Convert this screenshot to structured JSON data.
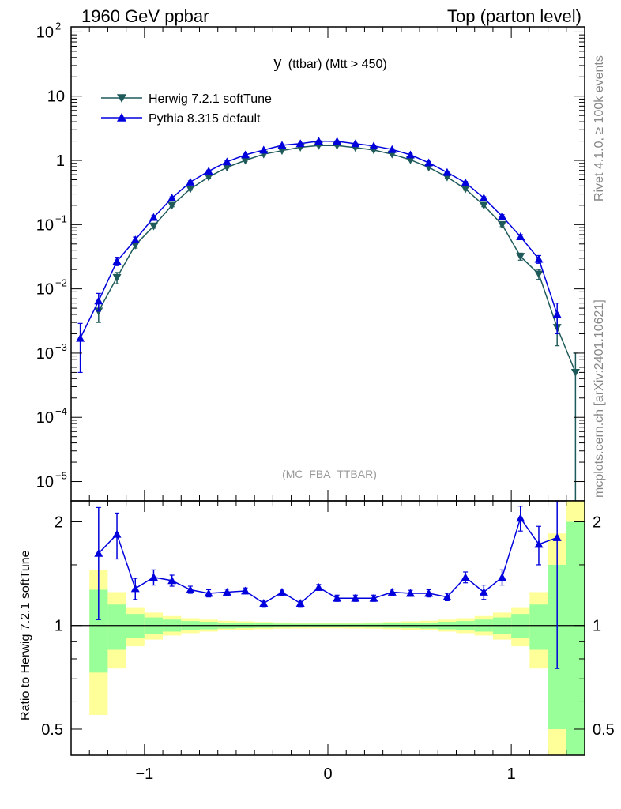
{
  "header": {
    "left": "1960 GeV ppbar",
    "right": "Top (parton level)"
  },
  "side_labels": {
    "rivet": "Rivet 4.1.0, ≥ 100k events",
    "mcplots": "mcplots.cern.ch [arXiv:2401.10621]"
  },
  "watermark": "(MC_FBA_TTBAR)",
  "colors": {
    "herwig": "#1e5a5a",
    "pythia": "#0000dd",
    "band_inner": "#99ff99",
    "band_outer": "#ffff99"
  },
  "chart_data": [
    {
      "type": "line",
      "title_main": "y",
      "title_sub": "(ttbar) (Mtt > 450)",
      "yscale": "log",
      "xlim": [
        -1.4,
        1.4
      ],
      "ylim": [
        5e-06,
        120
      ],
      "x_ticks": [
        -1,
        0,
        1
      ],
      "y_ticks": [
        {
          "value": 100,
          "base": "10",
          "exp": "2"
        },
        {
          "value": 10,
          "base": "10",
          "exp": ""
        },
        {
          "value": 1,
          "base": "1",
          "exp": ""
        },
        {
          "value": 0.1,
          "base": "10",
          "exp": "−1"
        },
        {
          "value": 0.01,
          "base": "10",
          "exp": "−2"
        },
        {
          "value": 0.001,
          "base": "10",
          "exp": "−3"
        },
        {
          "value": 0.0001,
          "base": "10",
          "exp": "−4"
        },
        {
          "value": 1e-05,
          "base": "10",
          "exp": "−5"
        }
      ],
      "legend_position": "top-left",
      "series": [
        {
          "name": "Herwig 7.2.1 softTune",
          "marker": "triangle-down",
          "x": [
            -1.25,
            -1.15,
            -1.05,
            -0.95,
            -0.85,
            -0.75,
            -0.65,
            -0.55,
            -0.45,
            -0.35,
            -0.25,
            -0.15,
            -0.05,
            0.05,
            0.15,
            0.25,
            0.35,
            0.45,
            0.55,
            0.65,
            0.75,
            0.85,
            0.95,
            1.05,
            1.15,
            1.25,
            1.35
          ],
          "y": [
            0.0045,
            0.015,
            0.048,
            0.095,
            0.2,
            0.36,
            0.55,
            0.78,
            1.0,
            1.25,
            1.42,
            1.6,
            1.7,
            1.7,
            1.58,
            1.45,
            1.25,
            1.02,
            0.78,
            0.55,
            0.36,
            0.2,
            0.1,
            0.032,
            0.017,
            0.0025,
            0.0005
          ],
          "err": [
            0.0015,
            0.003,
            0.005,
            0.007,
            0.01,
            0.015,
            0.02,
            0.02,
            0.03,
            0.03,
            0.03,
            0.03,
            0.03,
            0.03,
            0.03,
            0.03,
            0.03,
            0.03,
            0.02,
            0.02,
            0.015,
            0.01,
            0.007,
            0.004,
            0.003,
            0.0012,
            0.0005
          ]
        },
        {
          "name": "Pythia 8.315 default",
          "marker": "triangle-up",
          "x": [
            -1.35,
            -1.25,
            -1.15,
            -1.05,
            -0.95,
            -0.85,
            -0.75,
            -0.65,
            -0.55,
            -0.45,
            -0.35,
            -0.25,
            -0.15,
            -0.05,
            0.05,
            0.15,
            0.25,
            0.35,
            0.45,
            0.55,
            0.65,
            0.75,
            0.85,
            0.95,
            1.05,
            1.15,
            1.25
          ],
          "y": [
            0.0017,
            0.0065,
            0.027,
            0.058,
            0.13,
            0.26,
            0.46,
            0.68,
            0.95,
            1.22,
            1.45,
            1.72,
            1.83,
            2.0,
            1.98,
            1.82,
            1.68,
            1.48,
            1.22,
            0.92,
            0.65,
            0.45,
            0.26,
            0.135,
            0.065,
            0.029,
            0.004
          ],
          "err": [
            0.0012,
            0.002,
            0.004,
            0.006,
            0.008,
            0.012,
            0.02,
            0.025,
            0.03,
            0.035,
            0.04,
            0.04,
            0.04,
            0.04,
            0.04,
            0.04,
            0.04,
            0.04,
            0.035,
            0.03,
            0.025,
            0.02,
            0.012,
            0.008,
            0.005,
            0.004,
            0.002
          ]
        }
      ]
    },
    {
      "type": "line",
      "ylabel": "Ratio to Herwig 7.2.1 softTune",
      "yscale": "log",
      "xlim": [
        -1.4,
        1.4
      ],
      "ylim": [
        0.42,
        2.3
      ],
      "x_ticks": [
        -1,
        0,
        1
      ],
      "y_ticks": [
        0.5,
        1,
        2
      ],
      "y_tick_labels": [
        "0.5",
        "1",
        "2"
      ],
      "reference_line": 1,
      "band_edges": [
        -1.3,
        -1.2,
        -1.1,
        -1.0,
        -0.9,
        -0.8,
        -0.7,
        -0.6,
        -0.5,
        -0.4,
        -0.3,
        -0.2,
        -0.1,
        0.0,
        0.1,
        0.2,
        0.3,
        0.4,
        0.5,
        0.6,
        0.7,
        0.8,
        0.9,
        1.0,
        1.1,
        1.2,
        1.3,
        1.4
      ],
      "band_inner": [
        0.27,
        0.15,
        0.08,
        0.055,
        0.04,
        0.03,
        0.025,
        0.02,
        0.017,
        0.015,
        0.013,
        0.012,
        0.012,
        0.012,
        0.012,
        0.013,
        0.015,
        0.017,
        0.02,
        0.025,
        0.03,
        0.04,
        0.055,
        0.08,
        0.15,
        0.5,
        1.0
      ],
      "band_outer": [
        0.45,
        0.25,
        0.13,
        0.09,
        0.065,
        0.05,
        0.04,
        0.032,
        0.028,
        0.024,
        0.021,
        0.02,
        0.019,
        0.019,
        0.02,
        0.021,
        0.024,
        0.028,
        0.032,
        0.04,
        0.05,
        0.065,
        0.09,
        0.13,
        0.25,
        0.85,
        1.3
      ],
      "series": [
        {
          "name": "Pythia 8.315 default / Herwig 7.2.1 softTune",
          "x": [
            -1.25,
            -1.15,
            -1.05,
            -0.95,
            -0.85,
            -0.75,
            -0.65,
            -0.55,
            -0.45,
            -0.35,
            -0.25,
            -0.15,
            -0.05,
            0.05,
            0.15,
            0.25,
            0.35,
            0.45,
            0.55,
            0.65,
            0.75,
            0.85,
            0.95,
            1.05,
            1.15,
            1.25
          ],
          "y": [
            1.62,
            1.84,
            1.28,
            1.38,
            1.35,
            1.27,
            1.24,
            1.25,
            1.26,
            1.16,
            1.25,
            1.16,
            1.29,
            1.2,
            1.2,
            1.2,
            1.25,
            1.24,
            1.24,
            1.21,
            1.38,
            1.25,
            1.38,
            2.05,
            1.72,
            1.8
          ],
          "err": [
            0.58,
            0.28,
            0.09,
            0.07,
            0.05,
            0.03,
            0.03,
            0.025,
            0.025,
            0.025,
            0.025,
            0.025,
            0.025,
            0.025,
            0.025,
            0.025,
            0.025,
            0.025,
            0.03,
            0.03,
            0.05,
            0.06,
            0.07,
            0.17,
            0.22,
            1.05
          ]
        }
      ]
    }
  ]
}
